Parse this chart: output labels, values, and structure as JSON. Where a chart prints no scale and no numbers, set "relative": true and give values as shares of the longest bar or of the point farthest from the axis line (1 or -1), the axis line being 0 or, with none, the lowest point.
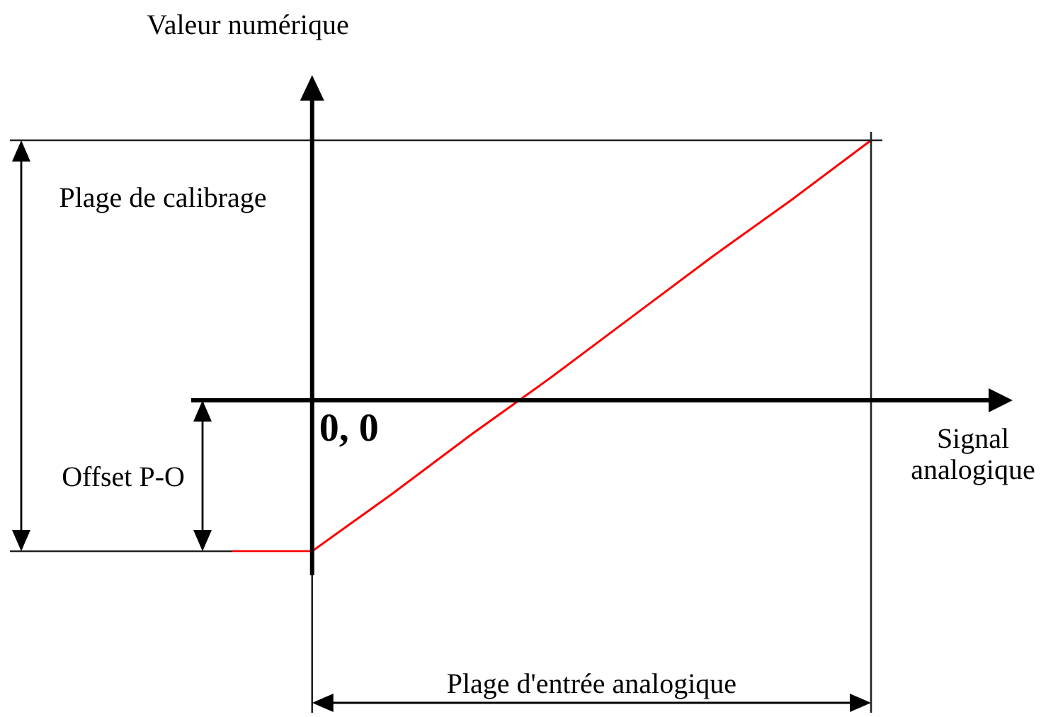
{
  "chart_data": {
    "type": "line",
    "relative": true,
    "ylabel": "Valeur numérique",
    "xlabel": "Signal analogique",
    "categories": [
      null,
      null,
      null,
      null,
      null,
      null,
      null,
      null,
      null
    ],
    "values": [
      -0.58,
      -0.58,
      -0.36,
      -0.13,
      0.09,
      0.32,
      0.55,
      0.77,
      1
    ],
    "color": "#ff0000",
    "annotations": [
      "Plage de calibrage",
      "0, 0",
      "Offset P-O",
      "Plage d'entrée analogique"
    ]
  }
}
